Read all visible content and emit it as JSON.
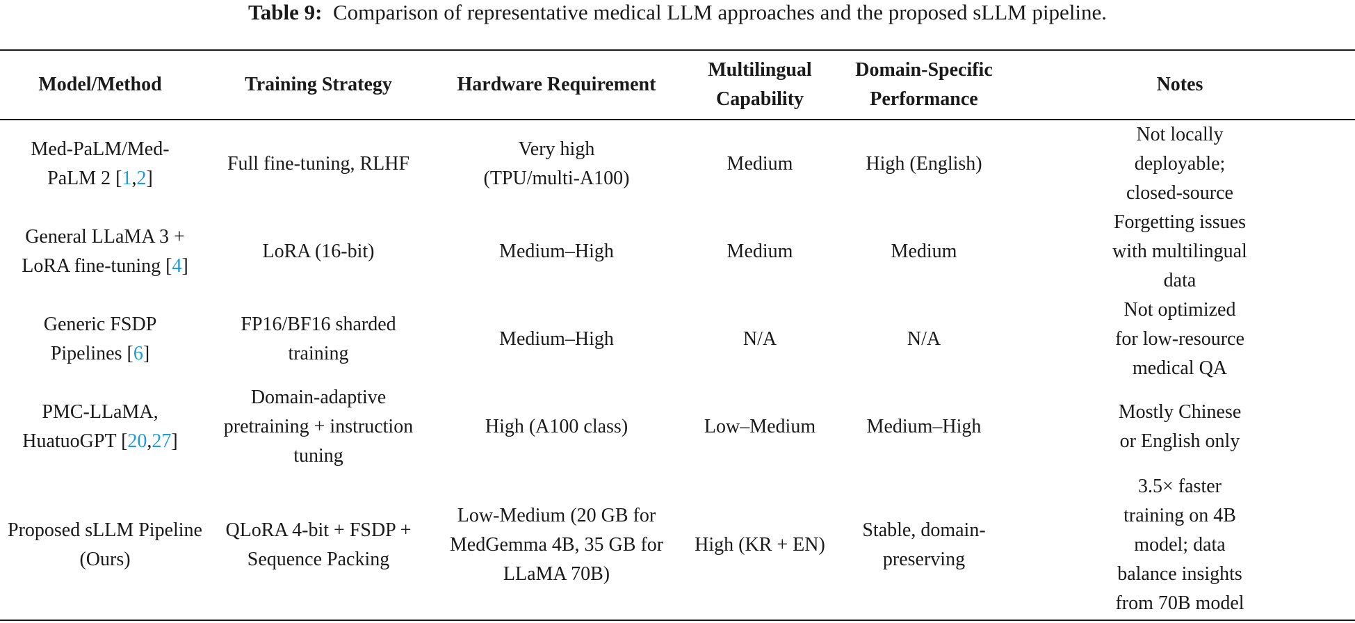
{
  "caption": {
    "label": "Table 9:",
    "text": "Comparison of representative medical LLM approaches and the proposed sLLM pipeline."
  },
  "headers": {
    "model": "Model/Method",
    "training": "Training Strategy",
    "hardware": "Hardware Requirement",
    "multilingual": "Multilingual Capability",
    "domain": "Domain-Specific Performance",
    "notes": "Notes"
  },
  "rows": [
    {
      "model": {
        "text": "Med-PaLM/Med-PaLM 2 [",
        "ref1": "1",
        "sep": ",",
        "ref2": "2",
        "close": "]"
      },
      "training": "Full fine-tuning, RLHF",
      "hardware": "Very high (TPU/multi-A100)",
      "multilingual": "Medium",
      "domain": "High (English)",
      "notes": "Not locally deployable; closed-source"
    },
    {
      "model": {
        "text": "General LLaMA 3 + LoRA fine-tuning [",
        "ref1": "4",
        "close": "]"
      },
      "training": "LoRA (16-bit)",
      "hardware": "Medium–High",
      "multilingual": "Medium",
      "domain": "Medium",
      "notes": "Forgetting issues with multilingual data"
    },
    {
      "model": {
        "text": "Generic FSDP Pipelines [",
        "ref1": "6",
        "close": "]"
      },
      "training": "FP16/BF16 sharded training",
      "hardware": "Medium–High",
      "multilingual": "N/A",
      "domain": "N/A",
      "notes": "Not optimized for low-resource medical QA"
    },
    {
      "model": {
        "text": "PMC-LLaMA, HuatuoGPT [",
        "ref1": "20",
        "sep": ",",
        "ref2": "27",
        "close": "]"
      },
      "training": "Domain-adaptive pretraining + instruction tuning",
      "hardware": "High (A100 class)",
      "multilingual": "Low–Medium",
      "domain": "Medium–High",
      "notes": "Mostly Chinese or English only"
    },
    {
      "model": {
        "text": "Proposed sLLM Pipeline (Ours)"
      },
      "training": "QLoRA 4-bit + FSDP + Sequence Packing",
      "hardware": "Low-Medium (20 GB for MedGemma 4B, 35 GB for LLaMA 70B)",
      "multilingual": "High (KR + EN)",
      "domain": "Stable, domain-preserving",
      "notes": "3.5× faster training on 4B model; data balance insights from 70B model"
    }
  ]
}
